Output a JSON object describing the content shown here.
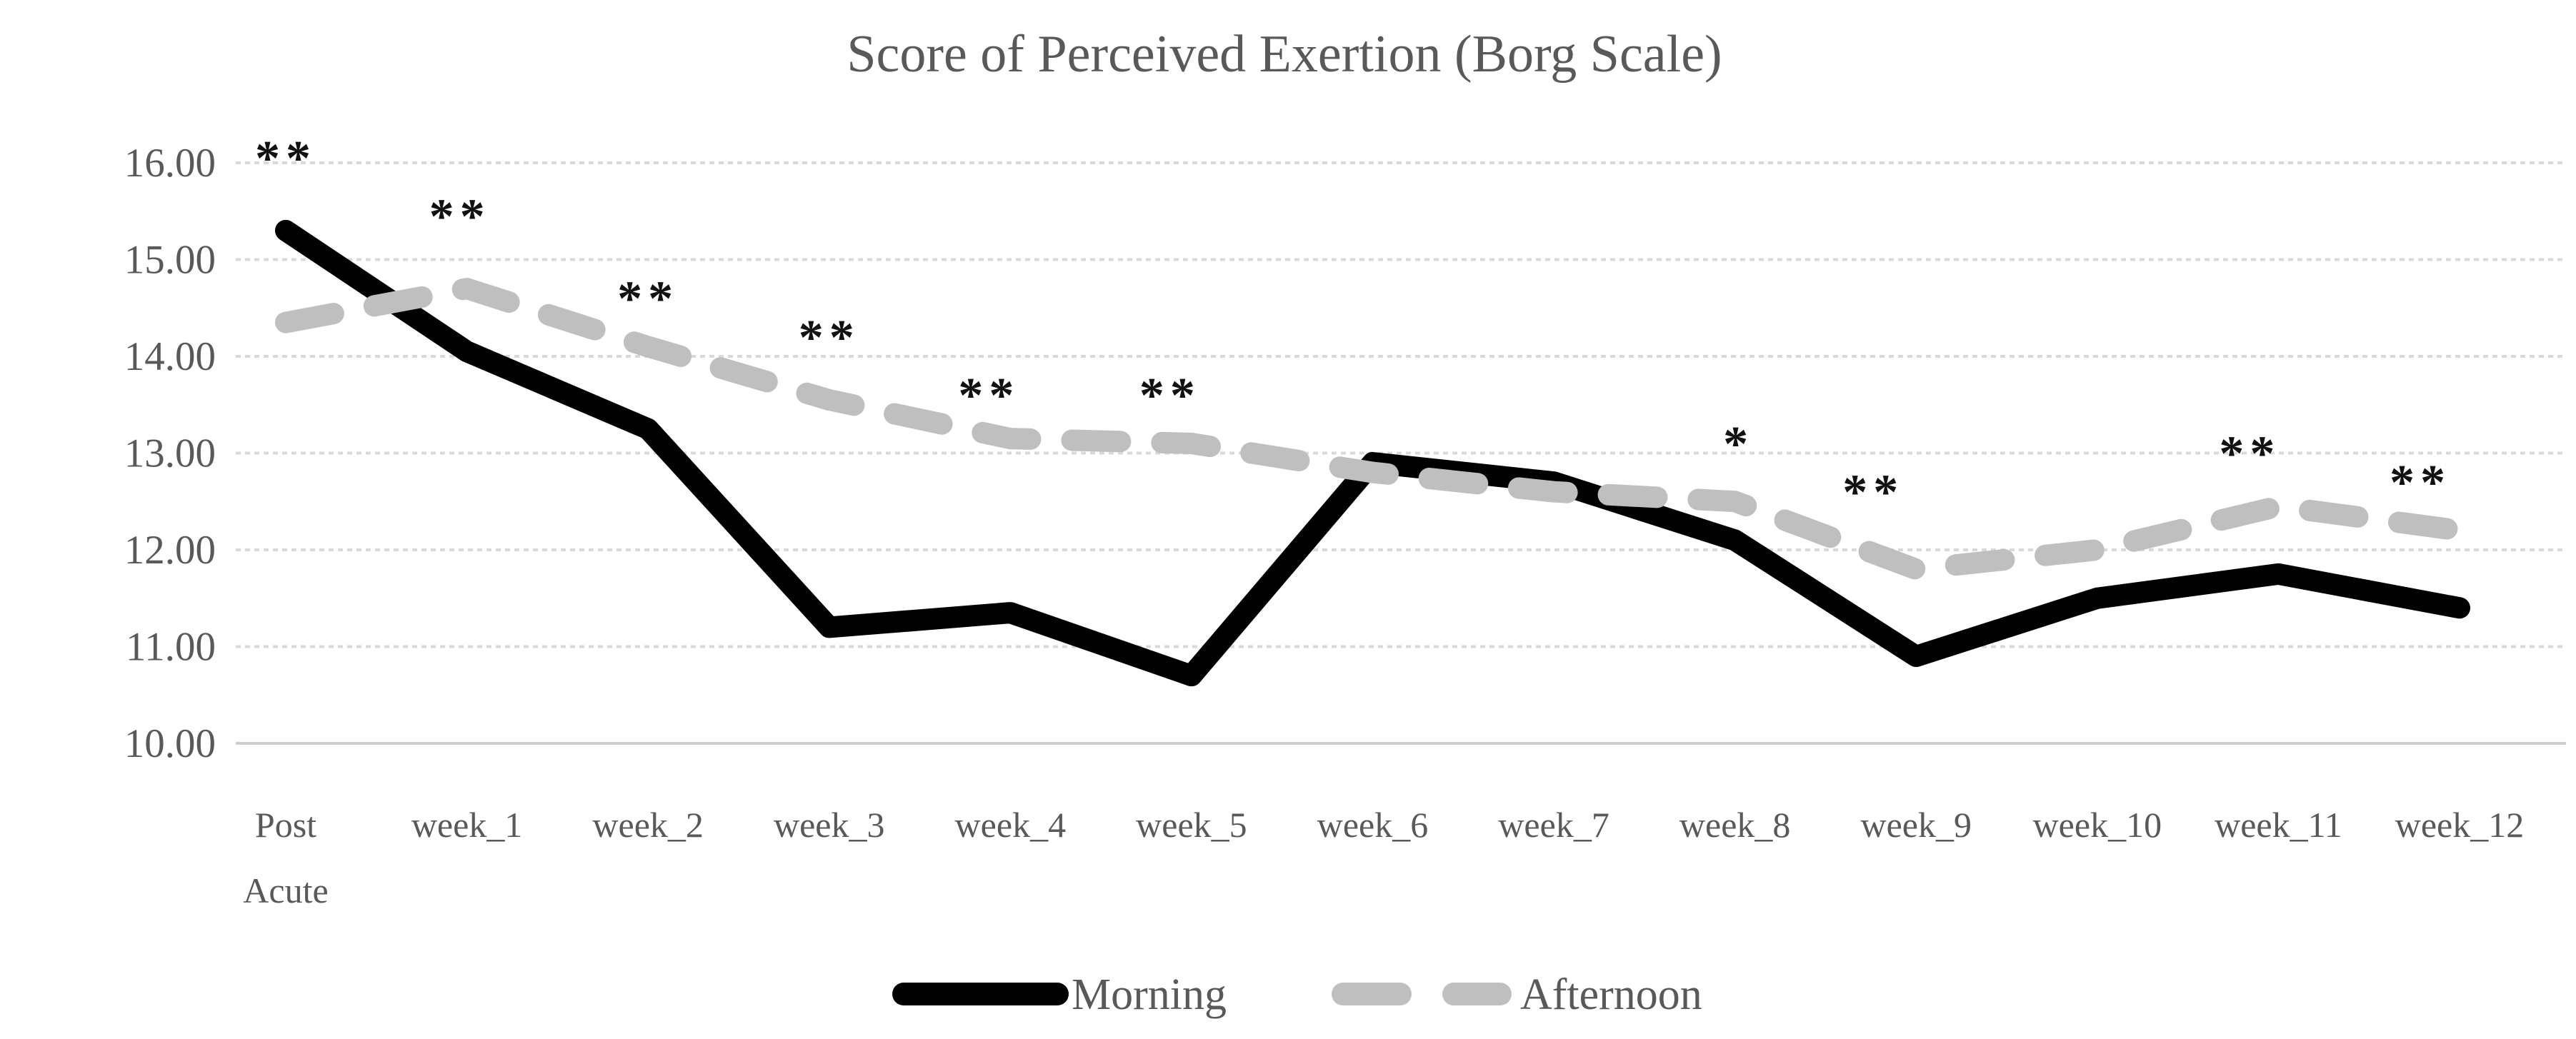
{
  "page": {
    "background": "#ffffff"
  },
  "colors": {
    "morning_line": "#000000",
    "afternoon_line": "#bfbfbf",
    "gridline": "#d9d9d9",
    "baseline": "#cfcfcf",
    "axis_text": "#595959",
    "title_text": "#595959",
    "annotation_text": "#111111"
  },
  "chart_data": {
    "type": "line",
    "title": "Score of Perceived Exertion (Borg Scale)",
    "xlabel": "",
    "ylabel": "",
    "ylim": [
      10,
      16
    ],
    "y_tick_labels": [
      "16.00",
      "15.00",
      "14.00",
      "13.00",
      "12.00",
      "11.00",
      "10.00"
    ],
    "y_tick_values": [
      16,
      15,
      14,
      13,
      12,
      11,
      10
    ],
    "grid": true,
    "legend_position": "bottom-center",
    "categories": [
      "Post Acute",
      "week_1",
      "week_2",
      "week_3",
      "week_4",
      "week_5",
      "week_6",
      "week_7",
      "week_8",
      "week_9",
      "week_10",
      "week_11",
      "week_12"
    ],
    "series": [
      {
        "name": "Morning",
        "line_style": "solid",
        "color": "#000000",
        "values": [
          15.3,
          14.05,
          13.25,
          11.2,
          11.35,
          10.7,
          12.9,
          12.7,
          12.1,
          10.9,
          11.5,
          11.75,
          11.4
        ]
      },
      {
        "name": "Afternoon",
        "line_style": "dashed",
        "color": "#bfbfbf",
        "values": [
          14.35,
          14.7,
          14.1,
          13.55,
          13.15,
          13.1,
          12.8,
          12.6,
          12.5,
          11.8,
          12.0,
          12.45,
          12.2
        ]
      }
    ],
    "annotations": [
      {
        "category_index": 0,
        "text": "**",
        "value": 16.05,
        "dx": 0
      },
      {
        "category_index": 1,
        "text": "**",
        "value": 15.45,
        "dx": -10
      },
      {
        "category_index": 2,
        "text": "**",
        "value": 14.6,
        "dx": 0
      },
      {
        "category_index": 3,
        "text": "**",
        "value": 14.2,
        "dx": 0
      },
      {
        "category_index": 4,
        "text": "**",
        "value": 13.6,
        "dx": -30
      },
      {
        "category_index": 5,
        "text": "**",
        "value": 13.6,
        "dx": -30
      },
      {
        "category_index": 8,
        "text": "*",
        "value": 13.1,
        "dx": 5
      },
      {
        "category_index": 9,
        "text": "**",
        "value": 12.6,
        "dx": -60
      },
      {
        "category_index": 11,
        "text": "**",
        "value": 13.0,
        "dx": -40
      },
      {
        "category_index": 12,
        "text": "**",
        "value": 12.7,
        "dx": -55
      }
    ],
    "legend": [
      {
        "label": "Morning"
      },
      {
        "label": "Afternoon"
      }
    ]
  }
}
